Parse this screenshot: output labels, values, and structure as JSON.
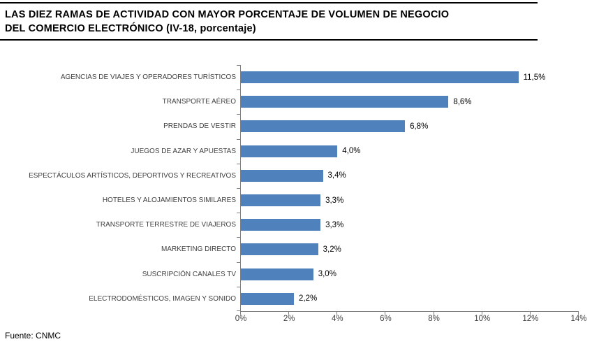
{
  "header": {
    "title_line1": "LAS DIEZ RAMAS DE ACTIVIDAD CON MAYOR PORCENTAJE DE VOLUMEN DE NEGOCIO",
    "title_line2": "DEL COMERCIO ELECTRÓNICO (IV-18, porcentaje)"
  },
  "footer": {
    "source": "Fuente: CNMC"
  },
  "chart_data": {
    "type": "bar",
    "orientation": "horizontal",
    "title": "LAS DIEZ RAMAS DE ACTIVIDAD CON MAYOR PORCENTAJE DE VOLUMEN DE NEGOCIO DEL COMERCIO ELECTRÓNICO (IV-18, porcentaje)",
    "categories": [
      "AGENCIAS DE VIAJES Y OPERADORES TURÍSTICOS",
      "TRANSPORTE AÉREO",
      "PRENDAS DE VESTIR",
      "JUEGOS DE AZAR Y APUESTAS",
      "ESPECTÁCULOS ARTÍSTICOS, DEPORTIVOS Y RECREATIVOS",
      "HOTELES Y ALOJAMIENTOS SIMILARES",
      "TRANSPORTE TERRESTRE DE VIAJEROS",
      "MARKETING DIRECTO",
      "SUSCRIPCIÓN CANALES TV",
      "ELECTRODOMÉSTICOS, IMAGEN Y SONIDO"
    ],
    "values": [
      11.5,
      8.6,
      6.8,
      4.0,
      3.4,
      3.3,
      3.3,
      3.2,
      3.0,
      2.2
    ],
    "value_labels": [
      "11,5%",
      "8,6%",
      "6,8%",
      "4,0%",
      "3,4%",
      "3,3%",
      "3,3%",
      "3,2%",
      "3,0%",
      "2,2%"
    ],
    "xlabel": "",
    "ylabel": "",
    "xlim": [
      0,
      14
    ],
    "x_ticks": [
      "0%",
      "2%",
      "4%",
      "6%",
      "8%",
      "10%",
      "12%",
      "14%"
    ],
    "grid": false,
    "legend": false,
    "bar_color": "#4f81bd",
    "axis_color": "#808080",
    "label_color": "#3f3f3f",
    "source": "Fuente: CNMC"
  }
}
